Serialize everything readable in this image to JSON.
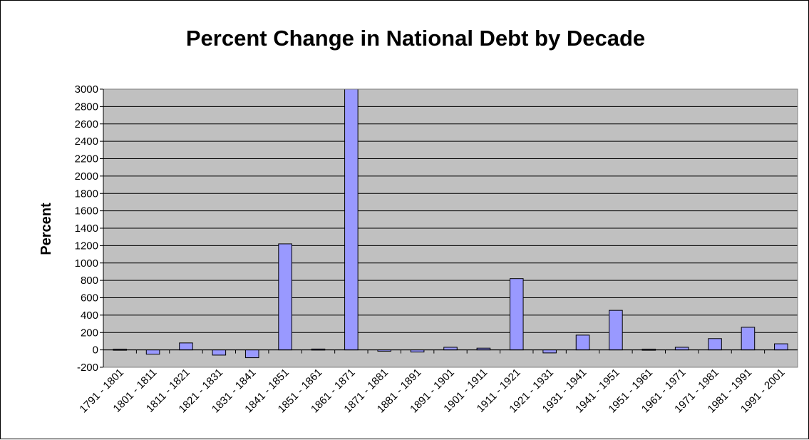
{
  "chart_data": {
    "type": "bar",
    "title": "Percent Change in National Debt by Decade",
    "xlabel": "",
    "ylabel": "Percent",
    "ylim": [
      -200,
      3000
    ],
    "ytick_step": 200,
    "grid": true,
    "legend": "none",
    "colors": {
      "bar_fill": "#9999ff",
      "bar_stroke": "#000000",
      "plot_background": "#c0c0c0",
      "gridline": "#000000"
    },
    "categories": [
      "1791 - 1801",
      "1801 - 1811",
      "1811 - 1821",
      "1821 - 1831",
      "1831 - 1841",
      "1841 - 1851",
      "1851 - 1861",
      "1861 - 1871",
      "1871 - 1881",
      "1881 - 1891",
      "1891 - 1901",
      "1901 - 1911",
      "1911 - 1921",
      "1921 - 1931",
      "1931 - 1941",
      "1941 - 1951",
      "1951 - 1961",
      "1961 - 1971",
      "1971 - 1981",
      "1981 - 1991",
      "1991 - 2001"
    ],
    "values": [
      8,
      -50,
      80,
      -60,
      -90,
      1220,
      10,
      3000,
      -15,
      -25,
      30,
      20,
      820,
      -35,
      170,
      455,
      8,
      30,
      130,
      260,
      70
    ]
  }
}
